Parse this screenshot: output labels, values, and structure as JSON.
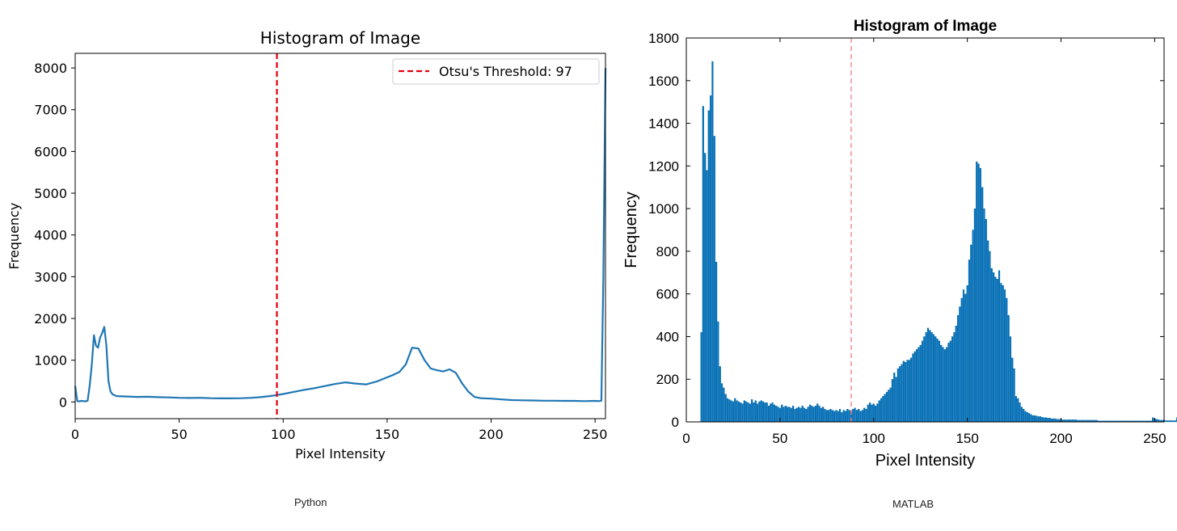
{
  "captions": {
    "left": "Python",
    "right": "MATLAB"
  },
  "colors": {
    "python_line": "#1f77b4",
    "threshold_line": "#e3000f",
    "matlab_bar": "#0072bd",
    "matlab_bar_edge": "#005a99",
    "matlab_threshold": "#f08080"
  },
  "chart_data": [
    {
      "type": "line",
      "title": "Histogram of Image",
      "xlabel": "Pixel Intensity",
      "ylabel": "Frequency",
      "xlim": [
        0,
        255
      ],
      "ylim": [
        -400,
        8350
      ],
      "xticks": [
        "0",
        "50",
        "100",
        "150",
        "200",
        "250"
      ],
      "yticks": [
        "0",
        "1000",
        "2000",
        "3000",
        "4000",
        "5000",
        "6000",
        "7000",
        "8000"
      ],
      "grid": false,
      "legend": {
        "placement": "top-right",
        "label": "Otsu's Threshold: 97"
      },
      "threshold": 97,
      "series": [
        {
          "points": [
            [
              0,
              380
            ],
            [
              1,
              20
            ],
            [
              2,
              15
            ],
            [
              3,
              25
            ],
            [
              4,
              20
            ],
            [
              5,
              15
            ],
            [
              6,
              30
            ],
            [
              7,
              400
            ],
            [
              8,
              900
            ],
            [
              9,
              1600
            ],
            [
              10,
              1350
            ],
            [
              11,
              1300
            ],
            [
              12,
              1550
            ],
            [
              13,
              1650
            ],
            [
              14,
              1800
            ],
            [
              15,
              1350
            ],
            [
              16,
              500
            ],
            [
              17,
              250
            ],
            [
              18,
              180
            ],
            [
              20,
              140
            ],
            [
              25,
              130
            ],
            [
              30,
              120
            ],
            [
              35,
              125
            ],
            [
              40,
              115
            ],
            [
              45,
              110
            ],
            [
              50,
              100
            ],
            [
              55,
              95
            ],
            [
              60,
              100
            ],
            [
              65,
              90
            ],
            [
              70,
              85
            ],
            [
              75,
              85
            ],
            [
              80,
              90
            ],
            [
              85,
              100
            ],
            [
              90,
              120
            ],
            [
              95,
              150
            ],
            [
              100,
              190
            ],
            [
              105,
              240
            ],
            [
              110,
              290
            ],
            [
              115,
              330
            ],
            [
              120,
              380
            ],
            [
              125,
              430
            ],
            [
              130,
              470
            ],
            [
              135,
              440
            ],
            [
              140,
              420
            ],
            [
              145,
              490
            ],
            [
              150,
              590
            ],
            [
              153,
              650
            ],
            [
              156,
              720
            ],
            [
              159,
              900
            ],
            [
              162,
              1300
            ],
            [
              165,
              1280
            ],
            [
              168,
              1000
            ],
            [
              171,
              800
            ],
            [
              174,
              760
            ],
            [
              177,
              730
            ],
            [
              180,
              780
            ],
            [
              183,
              700
            ],
            [
              186,
              450
            ],
            [
              189,
              250
            ],
            [
              192,
              120
            ],
            [
              195,
              90
            ],
            [
              200,
              80
            ],
            [
              205,
              60
            ],
            [
              210,
              45
            ],
            [
              215,
              40
            ],
            [
              220,
              35
            ],
            [
              225,
              30
            ],
            [
              230,
              30
            ],
            [
              235,
              25
            ],
            [
              240,
              25
            ],
            [
              245,
              20
            ],
            [
              250,
              25
            ],
            [
              252,
              20
            ],
            [
              253,
              30
            ],
            [
              254,
              3000
            ],
            [
              255,
              8000
            ]
          ]
        }
      ]
    },
    {
      "type": "bar",
      "title": "Histogram of Image",
      "xlabel": "Pixel Intensity",
      "ylabel": "Frequency",
      "xlim": [
        0,
        255
      ],
      "ylim": [
        0,
        1800
      ],
      "xticks": [
        "0",
        "50",
        "100",
        "150",
        "200",
        "250"
      ],
      "yticks": [
        "0",
        "200",
        "400",
        "600",
        "800",
        "1000",
        "1200",
        "1400",
        "1600",
        "1800"
      ],
      "grid": false,
      "threshold": 88,
      "x_start": 8,
      "values": [
        420,
        1480,
        1260,
        1180,
        1460,
        1530,
        1690,
        1340,
        750,
        470,
        260,
        180,
        160,
        130,
        110,
        105,
        100,
        95,
        110,
        100,
        95,
        90,
        85,
        100,
        95,
        90,
        85,
        105,
        90,
        100,
        85,
        95,
        100,
        95,
        90,
        90,
        75,
        85,
        90,
        80,
        75,
        70,
        65,
        80,
        70,
        75,
        70,
        70,
        65,
        75,
        60,
        65,
        70,
        65,
        75,
        65,
        60,
        70,
        80,
        75,
        70,
        75,
        85,
        75,
        65,
        70,
        60,
        55,
        55,
        60,
        55,
        50,
        55,
        50,
        60,
        45,
        55,
        50,
        60,
        55,
        50,
        60,
        65,
        55,
        60,
        50,
        55,
        65,
        60,
        80,
        90,
        80,
        85,
        75,
        85,
        100,
        110,
        120,
        130,
        140,
        150,
        160,
        200,
        230,
        210,
        250,
        260,
        270,
        285,
        280,
        290,
        290,
        300,
        320,
        330,
        340,
        350,
        360,
        380,
        400,
        420,
        440,
        430,
        420,
        410,
        400,
        390,
        380,
        360,
        350,
        340,
        350,
        370,
        380,
        400,
        420,
        450,
        500,
        540,
        580,
        620,
        600,
        640,
        760,
        830,
        900,
        1000,
        1220,
        1210,
        1190,
        1100,
        1000,
        950,
        850,
        800,
        720,
        700,
        680,
        670,
        710,
        650,
        640,
        620,
        580,
        500,
        400,
        300,
        250,
        120,
        110,
        90,
        70,
        60,
        50,
        45,
        40,
        35,
        30,
        30,
        28,
        25,
        25,
        22,
        20,
        20,
        18,
        18,
        15,
        15,
        15,
        12,
        12,
        12,
        10,
        10,
        10,
        10,
        10,
        10,
        10,
        10,
        8,
        8,
        8,
        8,
        8,
        8,
        8,
        8,
        8,
        8,
        8,
        5,
        5,
        5,
        5,
        5,
        5,
        5,
        5,
        5,
        5,
        5,
        5,
        5,
        5,
        5,
        5,
        5,
        5,
        5,
        5,
        5,
        5,
        5,
        5,
        5,
        5,
        5,
        5,
        5,
        20,
        15,
        12,
        10,
        8,
        8,
        8,
        6,
        6,
        6,
        6,
        6,
        6,
        20
      ]
    }
  ]
}
